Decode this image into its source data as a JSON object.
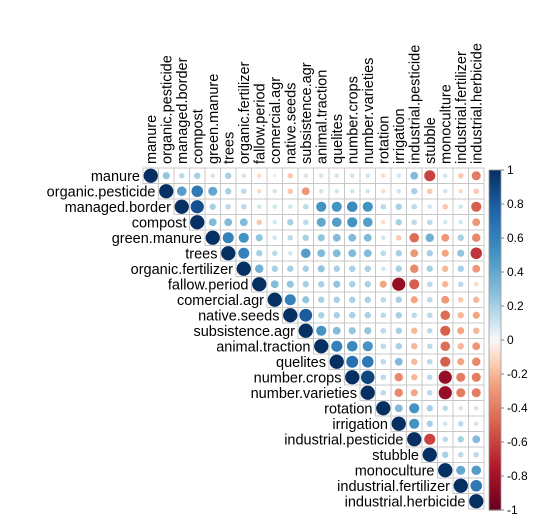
{
  "chart_data": {
    "type": "heatmap",
    "subtype": "upper-triangle correlation plot (circles)",
    "variables": [
      "manure",
      "organic.pesticide",
      "managed.border",
      "compost",
      "green.manure",
      "trees",
      "organic.fertilizer",
      "fallow.period",
      "comercial.agr",
      "native.seeds",
      "subsistence.agr",
      "animal.traction",
      "quelites",
      "number.crops",
      "number.varieties",
      "rotation",
      "irrigation",
      "industrial.pesticide",
      "stubble",
      "monoculture",
      "industrial.fertilizer",
      "industrial.herbicide"
    ],
    "value_range": [
      -1,
      1
    ],
    "legend": {
      "position": "right",
      "ticks": [
        "1",
        "0.8",
        "0.6",
        "0.4",
        "0.2",
        "0",
        "-0.2",
        "-0.4",
        "-0.6",
        "-0.8",
        "-1"
      ],
      "colors": {
        "negative": "#67001f",
        "neutral": "#f7f7f7",
        "positive": "#053061"
      }
    },
    "grid": true,
    "matrix": [
      [
        1,
        0.25,
        0.15,
        0.2,
        0.1,
        0.2,
        0.1,
        -0.1,
        0.05,
        -0.15,
        0.1,
        0.1,
        0.1,
        0.1,
        0.1,
        -0.1,
        0.1,
        0.3,
        -0.6,
        0.1,
        -0.15,
        -0.4
      ],
      [
        null,
        1,
        0.45,
        0.65,
        0.4,
        0.2,
        0.15,
        -0.1,
        0.1,
        -0.15,
        -0.3,
        0.1,
        0.1,
        0.1,
        0.1,
        -0.1,
        0.1,
        0.2,
        -0.15,
        0.1,
        -0.1,
        -0.15
      ],
      [
        null,
        null,
        1,
        0.85,
        0.2,
        0.15,
        0.15,
        0.1,
        0.1,
        0.1,
        0.15,
        0.5,
        0.5,
        0.55,
        0.5,
        0.15,
        0.2,
        0.15,
        0.1,
        -0.15,
        0.1,
        -0.5
      ],
      [
        null,
        null,
        null,
        1,
        0.3,
        0.3,
        0.3,
        -0.15,
        0.1,
        0.2,
        0.15,
        0.4,
        0.45,
        0.5,
        0.45,
        -0.1,
        0.2,
        0.15,
        0.15,
        0.1,
        0.1,
        -0.3
      ],
      [
        null,
        null,
        null,
        null,
        1,
        0.6,
        0.5,
        0.25,
        0.1,
        0.15,
        0.2,
        0.25,
        0.3,
        0.3,
        0.3,
        0.1,
        -0.15,
        -0.45,
        0.35,
        -0.3,
        0.2,
        -0.35
      ],
      [
        null,
        null,
        null,
        null,
        null,
        1,
        0.6,
        0.2,
        0.15,
        0.1,
        0.45,
        0.3,
        0.3,
        0.3,
        0.3,
        0.15,
        0.2,
        -0.3,
        0.2,
        -0.25,
        0.25,
        -0.65
      ],
      [
        null,
        null,
        null,
        null,
        null,
        null,
        1,
        0.35,
        0.2,
        0.2,
        0.2,
        0.25,
        0.2,
        0.2,
        0.2,
        0.1,
        0.2,
        -0.35,
        0.2,
        -0.2,
        0.2,
        -0.3
      ],
      [
        null,
        null,
        null,
        null,
        null,
        null,
        null,
        1,
        0.3,
        0.25,
        0.2,
        0.2,
        0.25,
        0.2,
        0.2,
        -0.25,
        -0.85,
        -0.5,
        0.15,
        -0.2,
        0.15,
        -0.1
      ],
      [
        null,
        null,
        null,
        null,
        null,
        null,
        null,
        null,
        1,
        0.6,
        0.25,
        0.2,
        0.2,
        0.2,
        0.2,
        0.15,
        0.2,
        -0.25,
        0.15,
        -0.3,
        -0.15,
        -0.2
      ],
      [
        null,
        null,
        null,
        null,
        null,
        null,
        null,
        null,
        null,
        1,
        0.8,
        0.2,
        0.2,
        0.2,
        0.2,
        0.15,
        0.2,
        0.15,
        0.15,
        -0.45,
        -0.2,
        -0.25
      ],
      [
        null,
        null,
        null,
        null,
        null,
        null,
        null,
        null,
        null,
        null,
        1,
        0.5,
        0.3,
        0.25,
        0.25,
        0.15,
        0.2,
        -0.2,
        0.15,
        -0.5,
        -0.25,
        -0.2
      ],
      [
        null,
        null,
        null,
        null,
        null,
        null,
        null,
        null,
        null,
        null,
        null,
        1,
        0.6,
        0.55,
        0.5,
        0.15,
        0.2,
        -0.2,
        0.15,
        -0.45,
        -0.2,
        -0.3
      ],
      [
        null,
        null,
        null,
        null,
        null,
        null,
        null,
        null,
        null,
        null,
        null,
        null,
        1,
        0.7,
        0.65,
        0.15,
        0.3,
        -0.2,
        0.15,
        -0.5,
        -0.25,
        -0.35
      ],
      [
        null,
        null,
        null,
        null,
        null,
        null,
        null,
        null,
        null,
        null,
        null,
        null,
        null,
        1,
        0.9,
        0.15,
        -0.35,
        -0.2,
        0.15,
        -0.85,
        -0.4,
        -0.4
      ],
      [
        null,
        null,
        null,
        null,
        null,
        null,
        null,
        null,
        null,
        null,
        null,
        null,
        null,
        null,
        1,
        0.15,
        -0.35,
        -0.25,
        0.15,
        -0.85,
        -0.4,
        -0.4
      ],
      [
        null,
        null,
        null,
        null,
        null,
        null,
        null,
        null,
        null,
        null,
        null,
        null,
        null,
        null,
        null,
        1,
        0.3,
        0.5,
        0.2,
        0.15,
        0.1,
        0.1
      ],
      [
        null,
        null,
        null,
        null,
        null,
        null,
        null,
        null,
        null,
        null,
        null,
        null,
        null,
        null,
        null,
        null,
        1,
        0.5,
        0.2,
        0.1,
        0.15,
        0.1
      ],
      [
        null,
        null,
        null,
        null,
        null,
        null,
        null,
        null,
        null,
        null,
        null,
        null,
        null,
        null,
        null,
        null,
        null,
        1,
        -0.6,
        0.15,
        0.2,
        0.3
      ],
      [
        null,
        null,
        null,
        null,
        null,
        null,
        null,
        null,
        null,
        null,
        null,
        null,
        null,
        null,
        null,
        null,
        null,
        null,
        1,
        0.2,
        0.15,
        0.15
      ],
      [
        null,
        null,
        null,
        null,
        null,
        null,
        null,
        null,
        null,
        null,
        null,
        null,
        null,
        null,
        null,
        null,
        null,
        null,
        null,
        1,
        0.4,
        0.45
      ],
      [
        null,
        null,
        null,
        null,
        null,
        null,
        null,
        null,
        null,
        null,
        null,
        null,
        null,
        null,
        null,
        null,
        null,
        null,
        null,
        null,
        1,
        0.65
      ],
      [
        null,
        null,
        null,
        null,
        null,
        null,
        null,
        null,
        null,
        null,
        null,
        null,
        null,
        null,
        null,
        null,
        null,
        null,
        null,
        null,
        null,
        1
      ]
    ]
  }
}
